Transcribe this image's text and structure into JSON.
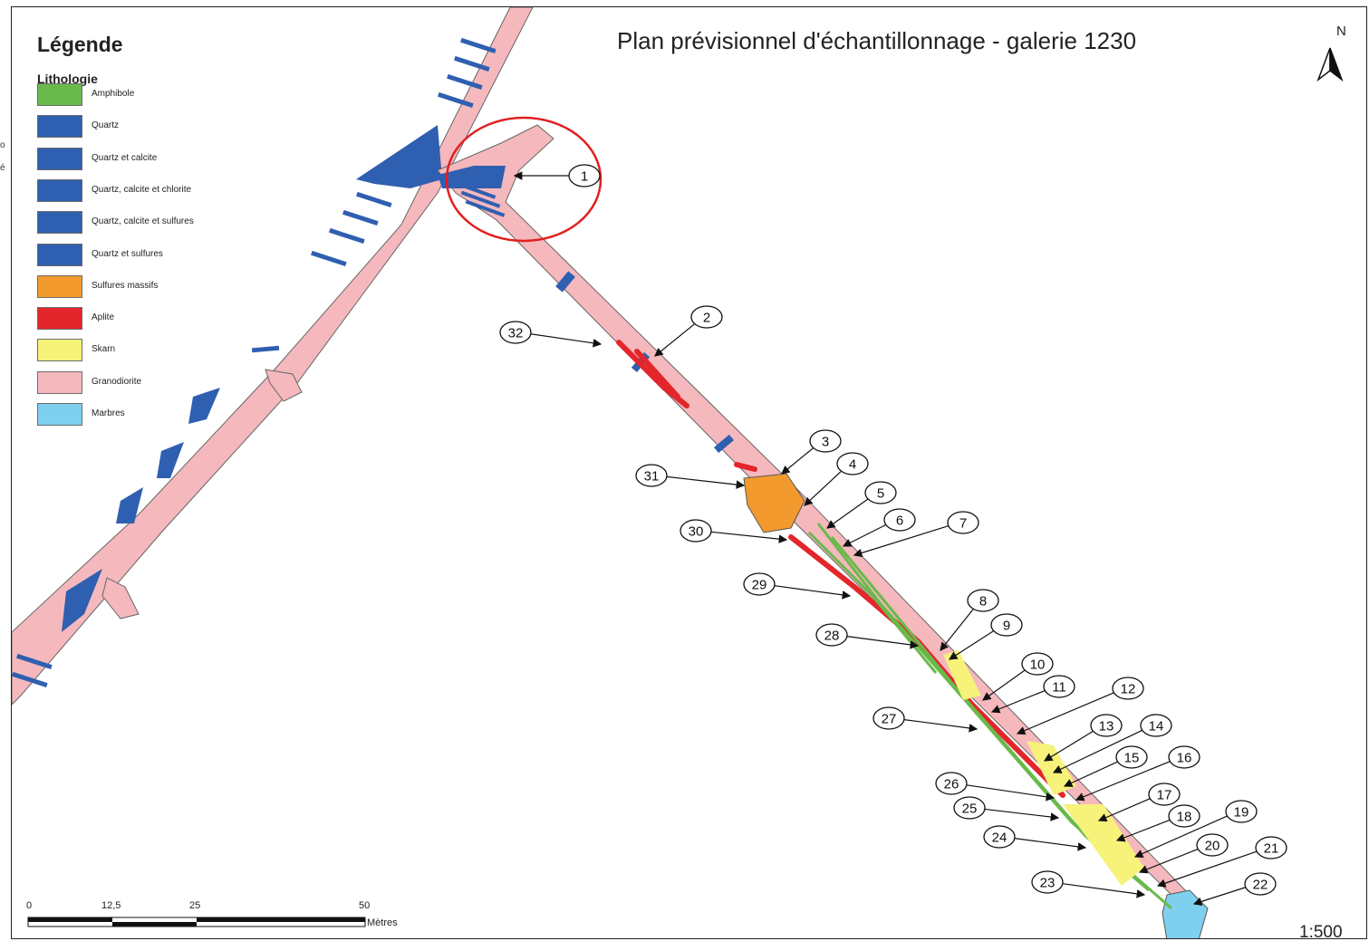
{
  "map": {
    "title": "Plan prévisionnel d'échantillonnage - galerie 1230",
    "north_label": "N",
    "scale_ratio": "1:500",
    "scale_bar": {
      "ticks": [
        "0",
        "12,5",
        "25",
        "50"
      ],
      "unit": "Mètres"
    }
  },
  "legend": {
    "title": "Légende",
    "subtitle": "Lithologie",
    "items": [
      {
        "label": "Amphibole",
        "color": "#6ab94b"
      },
      {
        "label": "Quartz",
        "color": "#2f5fb0"
      },
      {
        "label": "Quartz et calcite",
        "color": "#2f5fb0"
      },
      {
        "label": "Quartz, calcite et chlorite",
        "color": "#2f5fb0"
      },
      {
        "label": "Quartz, calcite et sulfures",
        "color": "#2f5fb0"
      },
      {
        "label": "Quartz et sulfures",
        "color": "#2f5fb0"
      },
      {
        "label": "Sulfures massifs",
        "color": "#f29a2e"
      },
      {
        "label": "Aplite",
        "color": "#e3262b"
      },
      {
        "label": "Skarn",
        "color": "#f6f27a"
      },
      {
        "label": "Granodiorite",
        "color": "#f5b8bd"
      },
      {
        "label": "Marbres",
        "color": "#7fd0ee"
      }
    ]
  },
  "callouts": [
    "1",
    "2",
    "3",
    "4",
    "5",
    "6",
    "7",
    "8",
    "9",
    "10",
    "11",
    "12",
    "13",
    "14",
    "15",
    "16",
    "17",
    "18",
    "19",
    "20",
    "21",
    "22",
    "23",
    "24",
    "25",
    "26",
    "27",
    "28",
    "29",
    "30",
    "31",
    "32"
  ],
  "left_crop_text": [
    "o",
    "é"
  ]
}
